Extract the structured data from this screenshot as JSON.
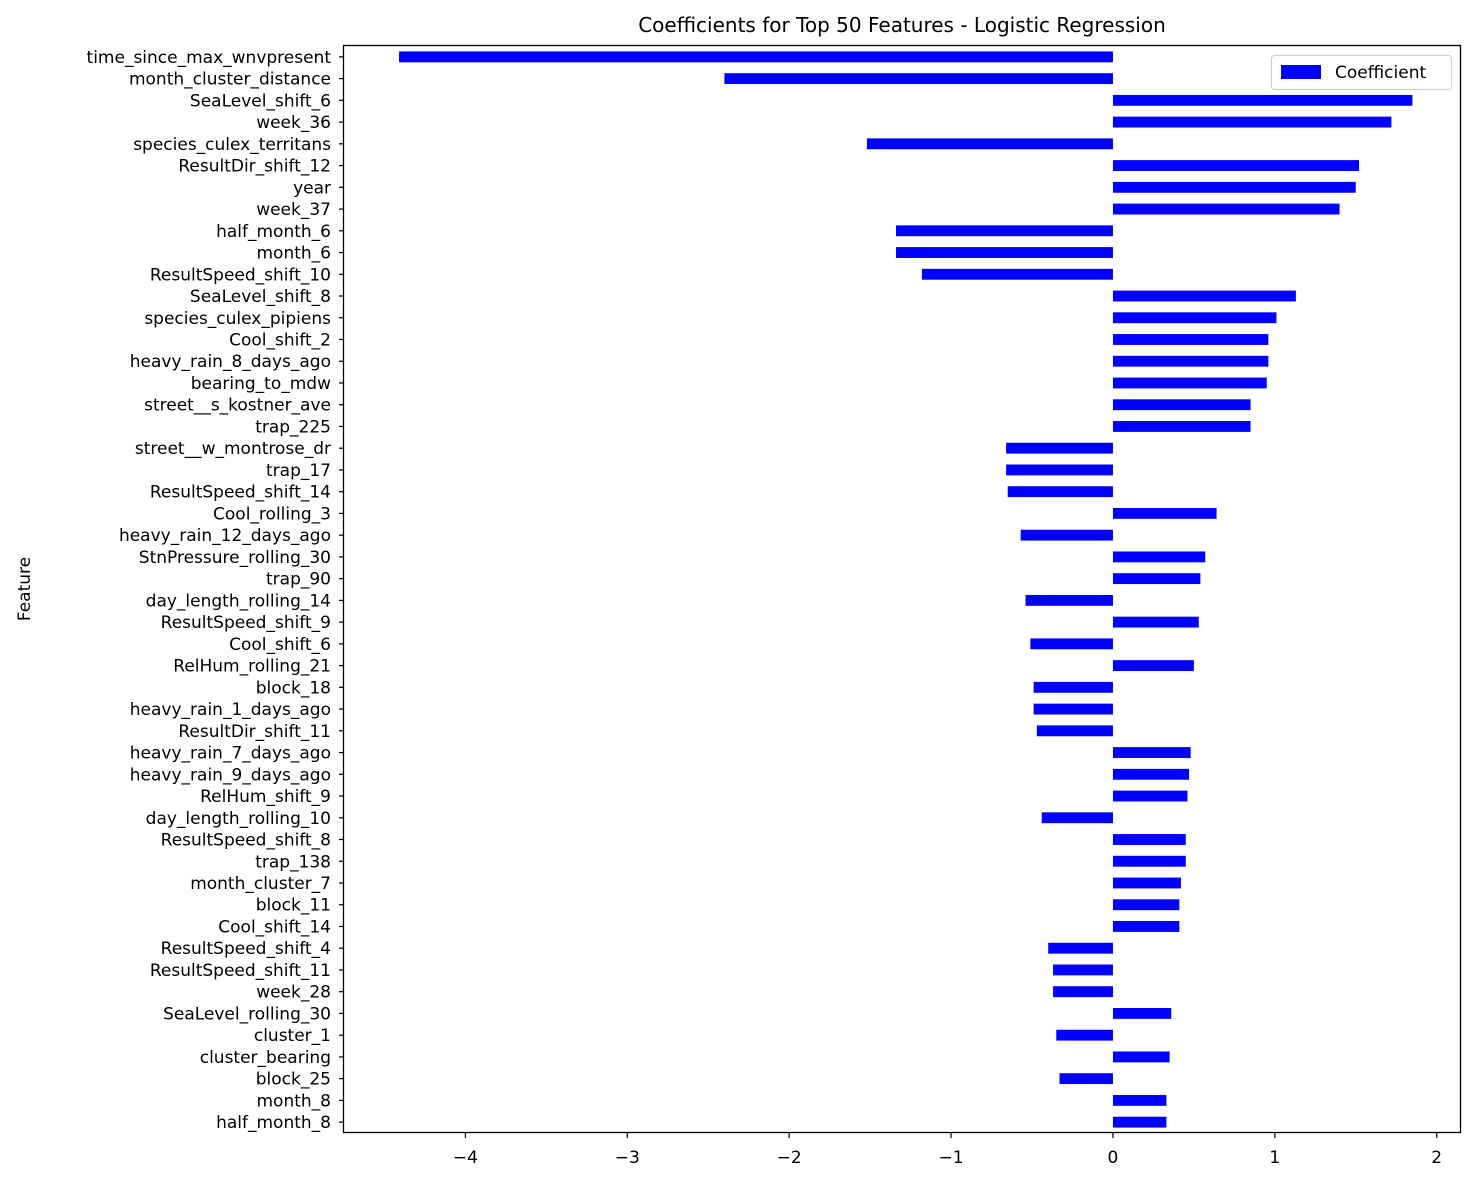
{
  "chart_data": {
    "type": "bar",
    "orientation": "horizontal",
    "title": "Coefficients for Top 50 Features - Logistic Regression",
    "ylabel": "Feature",
    "xlabel": "",
    "xlim": [
      -4.75,
      2.15
    ],
    "xticks": [
      -4,
      -3,
      -2,
      -1,
      0,
      1,
      2
    ],
    "xtick_labels": [
      "−4",
      "−3",
      "−2",
      "−1",
      "0",
      "1",
      "2"
    ],
    "grid": false,
    "legend": {
      "position": "top-right",
      "entries": [
        "Coefficient"
      ]
    },
    "bar_color": "#0000ff",
    "series": [
      {
        "name": "Coefficient",
        "categories": [
          "time_since_max_wnvpresent",
          "month_cluster_distance",
          "SeaLevel_shift_6",
          "week_36",
          "species_culex_territans",
          "ResultDir_shift_12",
          "year",
          "week_37",
          "half_month_6",
          "month_6",
          "ResultSpeed_shift_10",
          "SeaLevel_shift_8",
          "species_culex_pipiens",
          "Cool_shift_2",
          "heavy_rain_8_days_ago",
          "bearing_to_mdw",
          "street__s_kostner_ave",
          "trap_225",
          "street__w_montrose_dr",
          "trap_17",
          "ResultSpeed_shift_14",
          "Cool_rolling_3",
          "heavy_rain_12_days_ago",
          "StnPressure_rolling_30",
          "trap_90",
          "day_length_rolling_14",
          "ResultSpeed_shift_9",
          "Cool_shift_6",
          "RelHum_rolling_21",
          "block_18",
          "heavy_rain_1_days_ago",
          "ResultDir_shift_11",
          "heavy_rain_7_days_ago",
          "heavy_rain_9_days_ago",
          "RelHum_shift_9",
          "day_length_rolling_10",
          "ResultSpeed_shift_8",
          "trap_138",
          "month_cluster_7",
          "block_11",
          "Cool_shift_14",
          "ResultSpeed_shift_4",
          "ResultSpeed_shift_11",
          "week_28",
          "SeaLevel_rolling_30",
          "cluster_1",
          "cluster_bearing",
          "block_25",
          "month_8",
          "half_month_8"
        ],
        "values": [
          -4.41,
          -2.4,
          1.85,
          1.72,
          -1.52,
          1.52,
          1.5,
          1.4,
          -1.34,
          -1.34,
          -1.18,
          1.13,
          1.01,
          0.96,
          0.96,
          0.95,
          0.85,
          0.85,
          -0.66,
          -0.66,
          -0.65,
          0.64,
          -0.57,
          0.57,
          0.54,
          -0.54,
          0.53,
          -0.51,
          0.5,
          -0.49,
          -0.49,
          -0.47,
          0.48,
          0.47,
          0.46,
          -0.44,
          0.45,
          0.45,
          0.42,
          0.41,
          0.41,
          -0.4,
          -0.37,
          -0.37,
          0.36,
          -0.35,
          0.35,
          -0.33,
          0.33,
          0.33
        ]
      }
    ]
  }
}
